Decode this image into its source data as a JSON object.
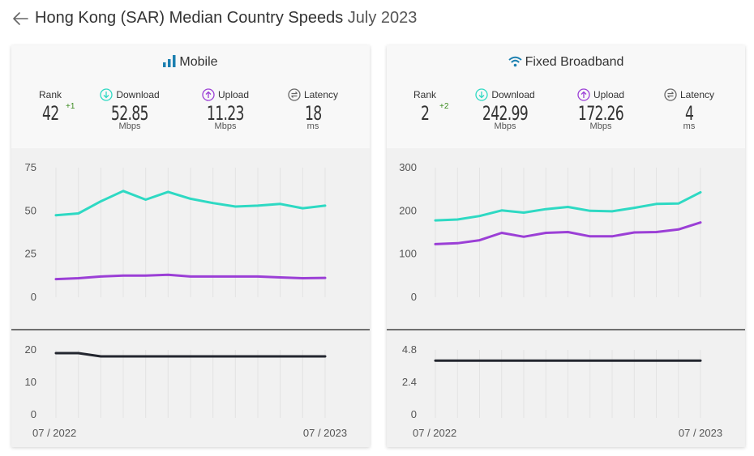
{
  "header": {
    "title": "Hong Kong (SAR) Median Country Speeds",
    "period": "July 2023"
  },
  "colors": {
    "download": "#2ed9c3",
    "upload": "#9b3fd6",
    "latency": "#23262f",
    "grid": "#e3e3e3",
    "icon": "#1b7fb0"
  },
  "labels": {
    "rank": "Rank",
    "download": "Download",
    "upload": "Upload",
    "latency": "Latency"
  },
  "cards": [
    {
      "title": "Mobile",
      "icon": "signal-bars-icon",
      "rank": "42",
      "rank_change": "+1",
      "download": "52.85",
      "download_unit": "Mbps",
      "upload": "11.23",
      "upload_unit": "Mbps",
      "latency": "18",
      "latency_unit": "ms",
      "x_start": "07 / 2022",
      "x_end": "07 / 2023"
    },
    {
      "title": "Fixed Broadband",
      "icon": "wifi-icon",
      "rank": "2",
      "rank_change": "+2",
      "download": "242.99",
      "download_unit": "Mbps",
      "upload": "172.26",
      "upload_unit": "Mbps",
      "latency": "4",
      "latency_unit": "ms",
      "x_start": "07 / 2022",
      "x_end": "07 / 2023"
    }
  ],
  "chart_data": [
    {
      "type": "line",
      "title": "Mobile",
      "x": [
        "07/2022",
        "08/2022",
        "09/2022",
        "10/2022",
        "11/2022",
        "12/2022",
        "01/2023",
        "02/2023",
        "03/2023",
        "04/2023",
        "05/2023",
        "06/2023",
        "07/2023"
      ],
      "speed": {
        "ylim": [
          0,
          75
        ],
        "yticks": [
          "0",
          "25",
          "50",
          "75"
        ],
        "series": [
          {
            "name": "Download",
            "values": [
              47.5,
              48.5,
              55.5,
              61.5,
              56.5,
              61,
              57,
              54.5,
              52.5,
              53,
              54,
              51.5,
              53
            ]
          },
          {
            "name": "Upload",
            "values": [
              10.5,
              11,
              12,
              12.5,
              12.5,
              13,
              12,
              12,
              12,
              12,
              11.5,
              11,
              11.2
            ]
          }
        ]
      },
      "latency": {
        "ylim": [
          0,
          20
        ],
        "yticks": [
          "0",
          "10",
          "20"
        ],
        "series": [
          {
            "name": "Latency",
            "values": [
              19,
              19,
              18,
              18,
              18,
              18,
              18,
              18,
              18,
              18,
              18,
              18,
              18
            ]
          }
        ]
      }
    },
    {
      "type": "line",
      "title": "Fixed Broadband",
      "x": [
        "07/2022",
        "08/2022",
        "09/2022",
        "10/2022",
        "11/2022",
        "12/2022",
        "01/2023",
        "02/2023",
        "03/2023",
        "04/2023",
        "05/2023",
        "06/2023",
        "07/2023"
      ],
      "speed": {
        "ylim": [
          0,
          300
        ],
        "yticks": [
          "0",
          "100",
          "200",
          "300"
        ],
        "series": [
          {
            "name": "Download",
            "values": [
              178,
              180,
              188,
              201,
              196,
              204,
              209,
              200,
              199,
              207,
              216,
              217,
              243
            ]
          },
          {
            "name": "Upload",
            "values": [
              123,
              125,
              132,
              149,
              140,
              149,
              151,
              141,
              141,
              150,
              151,
              157,
              173
            ]
          }
        ]
      },
      "latency": {
        "ylim": [
          0,
          4.8
        ],
        "yticks": [
          "0",
          "2.4",
          "4.8"
        ],
        "series": [
          {
            "name": "Latency",
            "values": [
              4,
              4,
              4,
              4,
              4,
              4,
              4,
              4,
              4,
              4,
              4,
              4,
              4
            ]
          }
        ]
      }
    }
  ]
}
